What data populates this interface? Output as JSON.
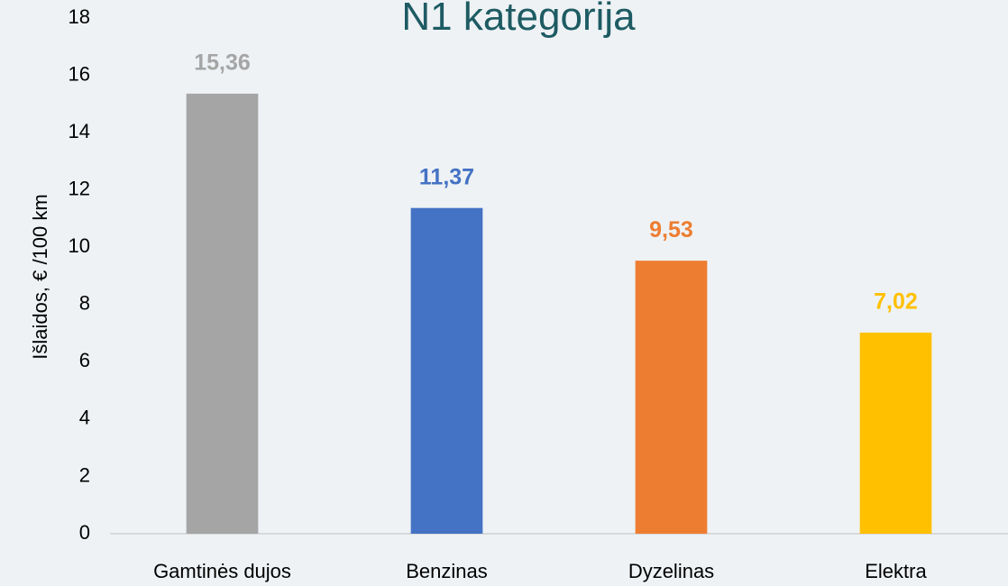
{
  "chart_data": {
    "type": "bar",
    "title": "N1 kategorija",
    "y_label": "Išlaidos, € /100 km",
    "categories": [
      "Gamtinės dujos",
      "Benzinas",
      "Dyzelinas",
      "Elektra"
    ],
    "values": [
      15.36,
      11.37,
      9.53,
      7.02
    ],
    "value_labels": [
      "15,36",
      "11,37",
      "9,53",
      "7,02"
    ],
    "colors": [
      "#a5a5a5",
      "#4472c4",
      "#ed7d31",
      "#ffc000"
    ],
    "ylim": [
      0,
      18
    ],
    "yticks": [
      0,
      2,
      4,
      6,
      8,
      10,
      12,
      14,
      16,
      18
    ],
    "grid": false
  }
}
